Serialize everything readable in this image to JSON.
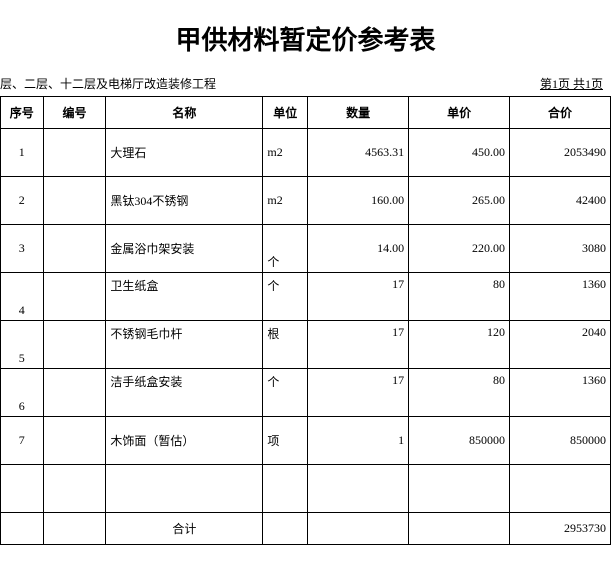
{
  "title": "甲供材料暂定价参考表",
  "subheader_left": "层、二层、十二层及电梯厅改造装修工程",
  "subheader_right": "第1页 共1页",
  "columns": {
    "seq": "序号",
    "code": "编号",
    "name": "名称",
    "unit": "单位",
    "qty": "数量",
    "price": "单价",
    "total": "合价"
  },
  "rows": [
    {
      "seq": "1",
      "code": "",
      "name": "大理石",
      "unit": "m2",
      "qty": "4563.31",
      "price": "450.00",
      "total": "2053490",
      "align": "middle"
    },
    {
      "seq": "2",
      "code": "",
      "name": "黑钛304不锈钢",
      "unit": "m2",
      "qty": "160.00",
      "price": "265.00",
      "total": "42400",
      "align": "middle"
    },
    {
      "seq": "3",
      "code": "",
      "name": "金属浴巾架安装",
      "unit": "个",
      "qty": "14.00",
      "price": "220.00",
      "total": "3080",
      "align": "middle",
      "unit_bottom": true
    },
    {
      "seq": "4",
      "code": "",
      "name": "卫生纸盒",
      "unit": "个",
      "qty": "17",
      "price": "80",
      "total": "1360",
      "align": "bottom",
      "name_top": true
    },
    {
      "seq": "5",
      "code": "",
      "name": "不锈钢毛巾杆",
      "unit": "根",
      "qty": "17",
      "price": "120",
      "total": "2040",
      "align": "bottom",
      "name_top": true
    },
    {
      "seq": "6",
      "code": "",
      "name": "洁手纸盒安装",
      "unit": "个",
      "qty": "17",
      "price": "80",
      "total": "1360",
      "align": "bottom",
      "name_top": true
    },
    {
      "seq": "7",
      "code": "",
      "name": "木饰面（暂估）",
      "unit": "项",
      "qty": "1",
      "price": "850000",
      "total": "850000",
      "align": "middle"
    }
  ],
  "total_label": "合计",
  "total_value": "2953730",
  "table_style": {
    "border_color": "#000000",
    "background": "#ffffff",
    "font_size_body": 12,
    "font_size_title": 26
  }
}
